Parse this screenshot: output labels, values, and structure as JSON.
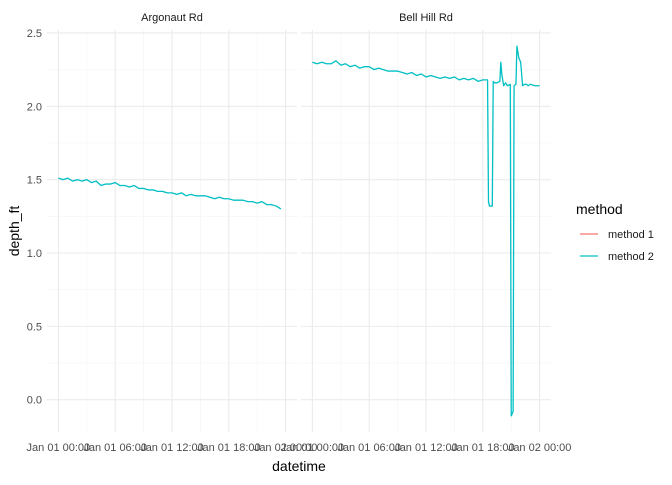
{
  "chart_data": {
    "type": "line",
    "xlabel": "datetime",
    "ylabel": "depth_ft",
    "ylim": [
      -0.22,
      2.52
    ],
    "y_ticks": [
      0.0,
      0.5,
      1.0,
      1.5,
      2.0,
      2.5
    ],
    "y_tick_labels": [
      "0.0",
      "0.5",
      "1.0",
      "1.5",
      "2.0",
      "2.5"
    ],
    "x_range_hours": [
      -1.2,
      25.2
    ],
    "x_ticks_hours": [
      0,
      6,
      12,
      18,
      24
    ],
    "x_tick_labels": [
      "Jan 01 00:00",
      "Jan 01 06:00",
      "Jan 01 12:00",
      "Jan 01 18:00",
      "Jan 02 00:00"
    ],
    "grid": true,
    "legend": {
      "title": "method",
      "position": "right",
      "entries": [
        {
          "name": "method 1",
          "color": "#F8766D"
        },
        {
          "name": "method 2",
          "color": "#00BFC4"
        }
      ]
    },
    "panels": [
      {
        "title": "Argonaut Rd",
        "series": [
          {
            "name": "method 2",
            "x": [
              0,
              0.5,
              1,
              1.5,
              2,
              2.5,
              3,
              3.5,
              4,
              4.5,
              5,
              5.5,
              6,
              6.5,
              7,
              7.5,
              8,
              8.5,
              9,
              9.5,
              10,
              10.5,
              11,
              11.5,
              12,
              12.5,
              13,
              13.5,
              14,
              14.5,
              15,
              15.5,
              16,
              16.5,
              17,
              17.5,
              18,
              18.5,
              19,
              19.5,
              20,
              20.5,
              21,
              21.5,
              22,
              22.5,
              23,
              23.5
            ],
            "y": [
              1.51,
              1.5,
              1.51,
              1.49,
              1.5,
              1.49,
              1.5,
              1.48,
              1.49,
              1.46,
              1.47,
              1.47,
              1.48,
              1.46,
              1.46,
              1.45,
              1.46,
              1.44,
              1.44,
              1.43,
              1.43,
              1.42,
              1.42,
              1.41,
              1.41,
              1.4,
              1.41,
              1.39,
              1.4,
              1.39,
              1.39,
              1.39,
              1.38,
              1.37,
              1.38,
              1.37,
              1.37,
              1.36,
              1.36,
              1.36,
              1.35,
              1.35,
              1.34,
              1.35,
              1.33,
              1.33,
              1.32,
              1.3
            ]
          }
        ]
      },
      {
        "title": "Bell Hill Rd",
        "series": [
          {
            "name": "method 2",
            "x": [
              0,
              0.5,
              1,
              1.5,
              2,
              2.5,
              3,
              3.5,
              4,
              4.5,
              5,
              5.5,
              6,
              6.5,
              7,
              7.5,
              8,
              8.5,
              9,
              9.5,
              10,
              10.5,
              11,
              11.5,
              12,
              12.5,
              13,
              13.5,
              14,
              14.5,
              15,
              15.5,
              16,
              16.5,
              17,
              17.5,
              18,
              18.5,
              18.6,
              18.7,
              19.0,
              19.1,
              19.2,
              19.5,
              19.8,
              19.9,
              20.0,
              20.2,
              20.4,
              20.6,
              20.9,
              21.0,
              21.2,
              21.3,
              21.5,
              21.6,
              21.8,
              22.0,
              22.2,
              22.4,
              22.6,
              22.8,
              23.0,
              23.5,
              24.0
            ],
            "y": [
              2.3,
              2.29,
              2.3,
              2.29,
              2.29,
              2.31,
              2.28,
              2.29,
              2.27,
              2.28,
              2.26,
              2.27,
              2.27,
              2.25,
              2.26,
              2.25,
              2.24,
              2.24,
              2.24,
              2.23,
              2.22,
              2.23,
              2.21,
              2.22,
              2.2,
              2.21,
              2.2,
              2.19,
              2.2,
              2.19,
              2.2,
              2.18,
              2.19,
              2.18,
              2.19,
              2.17,
              2.18,
              2.18,
              1.35,
              1.32,
              1.32,
              2.17,
              2.16,
              2.16,
              2.17,
              2.3,
              2.22,
              2.14,
              2.16,
              2.14,
              2.15,
              -0.11,
              -0.08,
              2.14,
              2.15,
              2.41,
              2.33,
              2.3,
              2.14,
              2.15,
              2.15,
              2.14,
              2.15,
              2.14,
              2.14
            ]
          }
        ]
      }
    ]
  }
}
